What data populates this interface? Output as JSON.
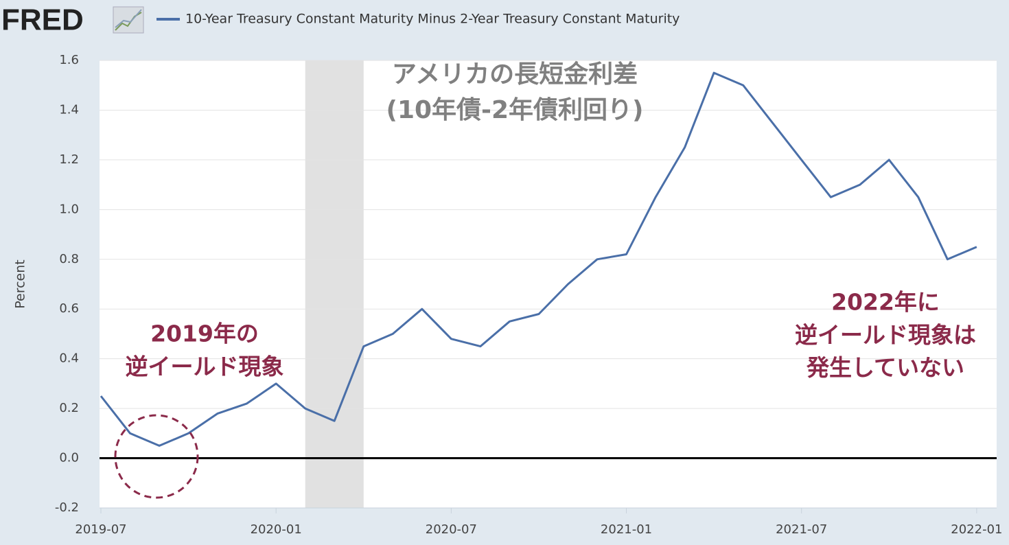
{
  "chart_data": {
    "type": "line",
    "logo": "FRED",
    "y_label": "Percent",
    "categories": [
      "2019-07",
      "2019-08",
      "2019-09",
      "2019-10",
      "2019-11",
      "2019-12",
      "2020-01",
      "2020-02",
      "2020-03",
      "2020-04",
      "2020-05",
      "2020-06",
      "2020-07",
      "2020-08",
      "2020-09",
      "2020-10",
      "2020-11",
      "2020-12",
      "2021-01",
      "2021-02",
      "2021-03",
      "2021-04",
      "2021-05",
      "2021-06",
      "2021-07",
      "2021-08",
      "2021-09",
      "2021-10",
      "2021-11",
      "2021-12",
      "2022-01"
    ],
    "series": [
      {
        "name": "10-Year Treasury Constant Maturity Minus 2-Year Treasury Constant Maturity",
        "color": "#4a6fa8",
        "values": [
          0.25,
          0.1,
          0.05,
          0.1,
          0.18,
          0.22,
          0.3,
          0.2,
          0.15,
          0.45,
          0.5,
          0.6,
          0.48,
          0.45,
          0.55,
          0.58,
          0.7,
          0.8,
          0.82,
          1.05,
          1.25,
          1.55,
          1.5,
          1.35,
          1.2,
          1.05,
          1.1,
          1.2,
          1.05,
          0.8,
          0.85
        ]
      }
    ],
    "ylim": [
      -0.2,
      1.6
    ],
    "yticks": [
      -0.2,
      {
        "value": 0,
        "label": "0.0"
      },
      0.2,
      0.4,
      0.6,
      0.8,
      {
        "value": 1,
        "label": "1.0"
      },
      1.2,
      1.4,
      1.6
    ],
    "xticks": [
      "2019-07",
      "2020-01",
      "2020-07",
      "2021-01",
      "2021-07",
      "2022-01"
    ],
    "recession": {
      "from": "2020-02",
      "to": "2020-04",
      "color": "#e1e1e1"
    },
    "grid": true,
    "annotations": [
      {
        "lines": [
          "アメリカの長短金利差",
          "(10年債-2年債利回り)"
        ],
        "color": "#808080"
      },
      {
        "lines": [
          "2019年の",
          "逆イールド現象"
        ],
        "color": "#8b2a4a"
      },
      {
        "lines": [
          "2022年に",
          "逆イールド現象は",
          "発生していない"
        ],
        "color": "#8b2a4a"
      }
    ]
  }
}
